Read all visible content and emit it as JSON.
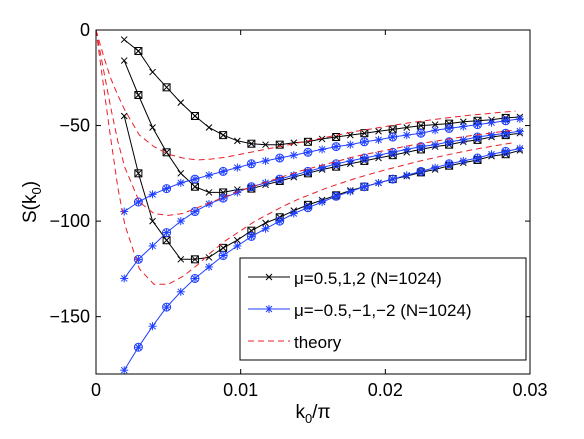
{
  "chart_data": {
    "type": "line",
    "title": "",
    "xlabel_base": "k",
    "xlabel_sub": "0",
    "xlabel_tail": "/π",
    "ylabel_base": "S(k",
    "ylabel_sub": "0",
    "ylabel_tail": ")",
    "xlim": [
      0,
      0.03
    ],
    "ylim": [
      -180,
      0
    ],
    "xticks": [
      0,
      0.01,
      0.02,
      0.03
    ],
    "xtick_labels": [
      "0",
      "0.01",
      "0.02",
      "0.03"
    ],
    "yticks": [
      0,
      -50,
      -100,
      -150
    ],
    "ytick_labels": [
      "0",
      "−50",
      "−100",
      "−150"
    ],
    "grid": false,
    "legend_position": "bottom-right",
    "legend": [
      {
        "label": "μ=0.5,1,2 (N=1024)",
        "color": "#000000",
        "marker": "x"
      },
      {
        "label": "μ=−0.5,−1,−2 (N=1024)",
        "color": "#1f3fff",
        "marker": "*"
      },
      {
        "label": "theory",
        "color": "#e8202a",
        "marker": "dashed"
      }
    ],
    "groups": {
      "positive_mu": {
        "color": "#000000",
        "marker": "x"
      },
      "negative_mu": {
        "color": "#1f3fff",
        "marker": "*"
      },
      "theory": {
        "color": "#e8202a",
        "style": "dashed"
      }
    },
    "series": [
      {
        "group": "positive_mu",
        "x": [
          0.00195,
          0.00293,
          0.00391,
          0.00488,
          0.00586,
          0.00684,
          0.00781,
          0.00879,
          0.00977,
          0.01074,
          0.01172,
          0.0127,
          0.01367,
          0.01465,
          0.01563,
          0.0166,
          0.01758,
          0.01855,
          0.01953,
          0.02051,
          0.02148,
          0.02246,
          0.02344,
          0.02441,
          0.02539,
          0.02637,
          0.02734,
          0.02832,
          0.0293
        ],
        "y": [
          -5,
          -11,
          -22,
          -30,
          -38,
          -45,
          -51,
          -55,
          -58,
          -59.5,
          -60,
          -60,
          -59,
          -58.5,
          -57,
          -56,
          -55,
          -54,
          -53,
          -52,
          -51,
          -50,
          -49.5,
          -49,
          -48,
          -47.5,
          -47,
          -46,
          -45.5
        ]
      },
      {
        "group": "positive_mu",
        "x": [
          0.00195,
          0.00293,
          0.00391,
          0.00488,
          0.00586,
          0.00684,
          0.00781,
          0.00879,
          0.00977,
          0.01074,
          0.01172,
          0.0127,
          0.01367,
          0.01465,
          0.01563,
          0.0166,
          0.01758,
          0.01855,
          0.01953,
          0.02051,
          0.02148,
          0.02246,
          0.02344,
          0.02441,
          0.02539,
          0.02637,
          0.02734,
          0.02832,
          0.0293
        ],
        "y": [
          -16,
          -34,
          -51,
          -64,
          -75,
          -82,
          -85,
          -85,
          -83.5,
          -83,
          -81,
          -79,
          -77,
          -75,
          -73,
          -71.5,
          -70,
          -68.5,
          -67,
          -65.5,
          -64,
          -62.5,
          -61,
          -60,
          -58.5,
          -57.5,
          -56,
          -55,
          -54
        ]
      },
      {
        "group": "positive_mu",
        "x": [
          0.00195,
          0.00293,
          0.00391,
          0.00488,
          0.00586,
          0.00684,
          0.00781,
          0.00879,
          0.00977,
          0.01074,
          0.01172,
          0.0127,
          0.01367,
          0.01465,
          0.01563,
          0.0166,
          0.01758,
          0.01855,
          0.01953,
          0.02051,
          0.02148,
          0.02246,
          0.02344,
          0.02441,
          0.02539,
          0.02637,
          0.02734,
          0.02832,
          0.0293
        ],
        "y": [
          -45,
          -75,
          -100,
          -110,
          -120,
          -120,
          -119,
          -114,
          -110,
          -105,
          -101,
          -98,
          -94.5,
          -91.5,
          -89,
          -86.5,
          -84,
          -82,
          -80,
          -78,
          -76.5,
          -74.5,
          -73,
          -71,
          -69.5,
          -68,
          -66,
          -65,
          -63
        ]
      },
      {
        "group": "negative_mu",
        "x": [
          0.00195,
          0.00293,
          0.00391,
          0.00488,
          0.00586,
          0.00684,
          0.00781,
          0.00879,
          0.00977,
          0.01074,
          0.01172,
          0.0127,
          0.01367,
          0.01465,
          0.01563,
          0.0166,
          0.01758,
          0.01855,
          0.01953,
          0.02051,
          0.02148,
          0.02246,
          0.02344,
          0.02441,
          0.02539,
          0.02637,
          0.02734,
          0.02832,
          0.0293
        ],
        "y": [
          -95,
          -90,
          -86,
          -83,
          -80,
          -78,
          -76,
          -74,
          -72,
          -70,
          -68.5,
          -67,
          -65.5,
          -64,
          -62.5,
          -61,
          -60,
          -58.5,
          -57.5,
          -56,
          -55,
          -54,
          -52.5,
          -51.5,
          -50.5,
          -49.5,
          -48.5,
          -47.5,
          -46.5
        ]
      },
      {
        "group": "negative_mu",
        "x": [
          0.00195,
          0.00293,
          0.00391,
          0.00488,
          0.00586,
          0.00684,
          0.00781,
          0.00879,
          0.00977,
          0.01074,
          0.01172,
          0.0127,
          0.01367,
          0.01465,
          0.01563,
          0.0166,
          0.01758,
          0.01855,
          0.01953,
          0.02051,
          0.02148,
          0.02246,
          0.02344,
          0.02441,
          0.02539,
          0.02637,
          0.02734,
          0.02832,
          0.0293
        ],
        "y": [
          -130,
          -120,
          -113,
          -106,
          -100,
          -95,
          -91,
          -88,
          -85,
          -82,
          -80,
          -78,
          -76,
          -74,
          -72,
          -70,
          -68.5,
          -67,
          -65.5,
          -64,
          -62.5,
          -61,
          -60,
          -58.5,
          -57.5,
          -56,
          -55,
          -54,
          -53
        ]
      },
      {
        "group": "negative_mu",
        "x": [
          0.00195,
          0.00293,
          0.00391,
          0.00488,
          0.00586,
          0.00684,
          0.00781,
          0.00879,
          0.00977,
          0.01074,
          0.01172,
          0.0127,
          0.01367,
          0.01465,
          0.01563,
          0.0166,
          0.01758,
          0.01855,
          0.01953,
          0.02051,
          0.02148,
          0.02246,
          0.02344,
          0.02441,
          0.02539,
          0.02637,
          0.02734,
          0.02832,
          0.0293
        ],
        "y": [
          -178,
          -166,
          -155,
          -145,
          -137,
          -130,
          -124,
          -118,
          -113,
          -108,
          -104,
          -100,
          -96,
          -93,
          -90,
          -87,
          -84.5,
          -82,
          -80,
          -78,
          -76,
          -74,
          -72,
          -70,
          -68.5,
          -67,
          -65,
          -63.5,
          -62
        ]
      },
      {
        "group": "theory",
        "x": [
          0,
          0.0005,
          0.001,
          0.0015,
          0.002,
          0.003,
          0.004,
          0.005,
          0.006,
          0.007,
          0.008,
          0.009,
          0.01,
          0.011,
          0.012,
          0.013,
          0.014,
          0.015,
          0.016,
          0.017,
          0.018,
          0.019,
          0.02,
          0.021,
          0.022,
          0.023,
          0.024,
          0.025,
          0.026,
          0.027,
          0.028,
          0.029
        ],
        "y": [
          0,
          -13,
          -25,
          -34,
          -42,
          -55,
          -61,
          -65,
          -67,
          -68,
          -67.5,
          -66.5,
          -65,
          -63.5,
          -62,
          -60.5,
          -59,
          -57.5,
          -56,
          -54.5,
          -53,
          -51.8,
          -50.5,
          -49.3,
          -48.2,
          -47.2,
          -46.2,
          -45.3,
          -44.5,
          -43.8,
          -43,
          -42.5
        ]
      },
      {
        "group": "theory",
        "x": [
          0,
          0.0005,
          0.001,
          0.0015,
          0.002,
          0.003,
          0.004,
          0.005,
          0.006,
          0.007,
          0.008,
          0.009,
          0.01,
          0.011,
          0.012,
          0.013,
          0.014,
          0.015,
          0.016,
          0.017,
          0.018,
          0.019,
          0.02,
          0.021,
          0.022,
          0.023,
          0.024,
          0.025,
          0.026,
          0.027,
          0.028,
          0.029
        ],
        "y": [
          0,
          -20,
          -40,
          -58,
          -72,
          -90,
          -96,
          -97,
          -96,
          -93,
          -90,
          -87,
          -84,
          -81.5,
          -79,
          -76.5,
          -74,
          -72,
          -70,
          -68,
          -66,
          -64.5,
          -63,
          -61.5,
          -60,
          -58.7,
          -57.5,
          -56.3,
          -55.2,
          -54.2,
          -53.2,
          -52.3
        ]
      },
      {
        "group": "theory",
        "x": [
          0,
          0.0005,
          0.001,
          0.0015,
          0.002,
          0.003,
          0.004,
          0.005,
          0.006,
          0.007,
          0.008,
          0.009,
          0.01,
          0.011,
          0.012,
          0.013,
          0.014,
          0.015,
          0.016,
          0.017,
          0.018,
          0.019,
          0.02,
          0.021,
          0.022,
          0.023,
          0.024,
          0.025,
          0.026,
          0.027,
          0.028,
          0.029
        ],
        "y": [
          0,
          -28,
          -56,
          -82,
          -102,
          -125,
          -133,
          -133,
          -129,
          -123,
          -116,
          -110,
          -105,
          -100,
          -96,
          -92,
          -88.5,
          -85.5,
          -82.5,
          -80,
          -77.5,
          -75.3,
          -73.2,
          -71.2,
          -69.3,
          -67.5,
          -65.8,
          -64.2,
          -62.7,
          -61.3,
          -60,
          -58.8
        ]
      }
    ]
  }
}
